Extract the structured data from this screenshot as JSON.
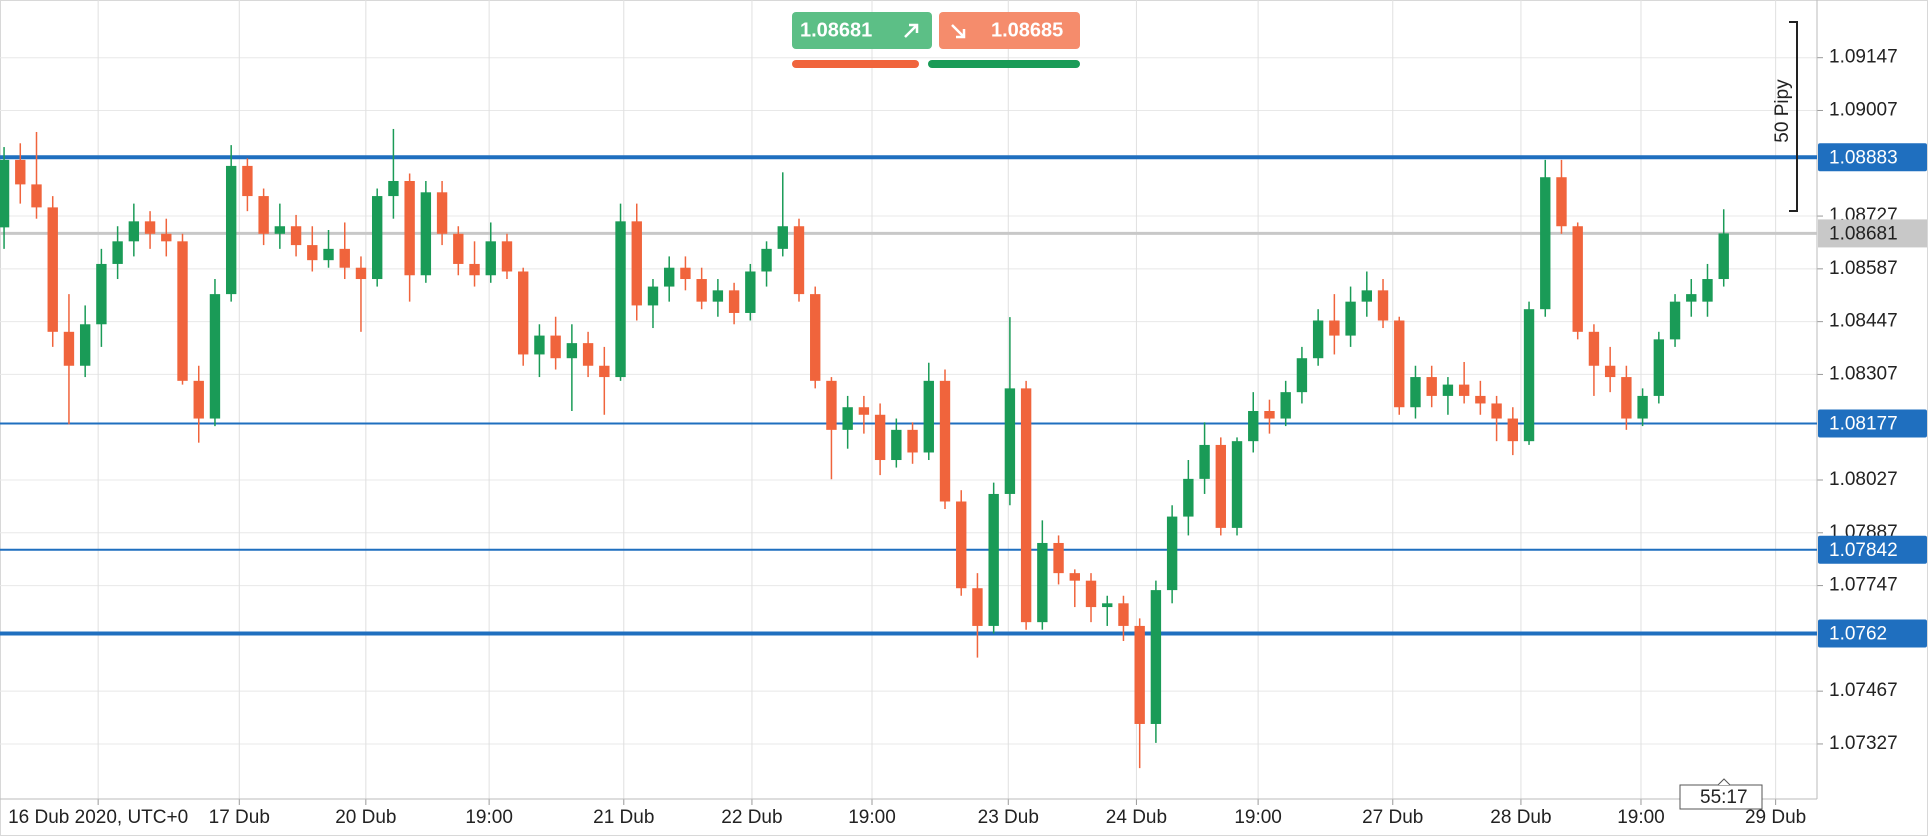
{
  "chart_data": {
    "type": "candlestick",
    "up_color": "#1a9b57",
    "down_color": "#f0643c",
    "level_color": "#1f6fbf",
    "current_color": "#c8c8c8",
    "grid": true,
    "ylim": [
      1.07181,
      1.093
    ],
    "yticks": [
      1.09147,
      1.09007,
      1.08727,
      1.08587,
      1.08447,
      1.08307,
      1.08027,
      1.07887,
      1.07747,
      1.07467,
      1.07327
    ],
    "xlim": [
      -0.25,
      111.75
    ],
    "xticks": [
      {
        "value": 5.8,
        "label": "16 Dub 2020, UTC+0"
      },
      {
        "value": 14.5,
        "label": "17 Dub"
      },
      {
        "value": 22.3,
        "label": "20 Dub"
      },
      {
        "value": 29.9,
        "label": "19:00"
      },
      {
        "value": 38.2,
        "label": "21 Dub"
      },
      {
        "value": 46.1,
        "label": "22 Dub"
      },
      {
        "value": 53.5,
        "label": "19:00"
      },
      {
        "value": 61.9,
        "label": "23 Dub"
      },
      {
        "value": 69.8,
        "label": "24 Dub"
      },
      {
        "value": 77.3,
        "label": "19:00"
      },
      {
        "value": 85.6,
        "label": "27 Dub"
      },
      {
        "value": 93.5,
        "label": "28 Dub"
      },
      {
        "value": 100.9,
        "label": "19:00"
      },
      {
        "value": 109.2,
        "label": "29 Dub"
      }
    ],
    "levels": [
      1.08883,
      1.08177,
      1.07842,
      1.0762
    ],
    "level_styles": [
      "bold",
      "thin",
      "thin",
      "bold"
    ],
    "current_price": 1.08681,
    "sell_price": 1.08681,
    "buy_price": 1.08685,
    "measure_label": "50 Pipy",
    "timer": "55:17",
    "open": [
      1.08697,
      1.08876,
      1.08811,
      1.0875,
      1.0842,
      1.0833,
      1.0844,
      1.086,
      1.0866,
      1.08713,
      1.0868,
      1.0866,
      1.0829,
      1.0819,
      1.0852,
      1.0886,
      1.0878,
      1.0868,
      1.087,
      1.0865,
      1.0861,
      1.0864,
      1.0859,
      1.0856,
      1.0878,
      1.0882,
      1.0857,
      1.0879,
      1.0868,
      1.086,
      1.0857,
      1.0866,
      1.0858,
      1.0836,
      1.0841,
      1.0835,
      1.0839,
      1.0833,
      1.083,
      1.08713,
      1.0849,
      1.0854,
      1.0859,
      1.0856,
      1.085,
      1.0853,
      1.0847,
      1.0858,
      1.0864,
      1.087,
      1.0852,
      1.0829,
      1.0816,
      1.0822,
      1.082,
      1.0808,
      1.0816,
      1.081,
      1.0829,
      1.0797,
      1.0774,
      1.0764,
      1.0799,
      1.0827,
      1.0765,
      1.0786,
      1.0778,
      1.0776,
      1.0769,
      1.077,
      1.0764,
      1.0738,
      1.07735,
      1.0793,
      1.0803,
      1.0812,
      1.079,
      1.0813,
      1.0821,
      1.0819,
      1.0826,
      1.0835,
      1.0845,
      1.0841,
      1.085,
      1.0853,
      1.0845,
      1.0822,
      1.083,
      1.0825,
      1.0828,
      1.0825,
      1.0823,
      1.0819,
      1.0813,
      1.0848,
      1.0883,
      1.087,
      1.0842,
      1.0833,
      1.083,
      1.0819,
      1.0825,
      1.084,
      1.085,
      1.085,
      1.0856
    ],
    "high": [
      1.0891,
      1.0892,
      1.0895,
      1.0878,
      1.0852,
      1.0849,
      1.0864,
      1.087,
      1.0876,
      1.0874,
      1.0872,
      1.0868,
      1.0833,
      1.0856,
      1.08915,
      1.0888,
      1.088,
      1.0876,
      1.0873,
      1.087,
      1.0869,
      1.0871,
      1.0862,
      1.088,
      1.08958,
      1.0884,
      1.0882,
      1.0882,
      1.087,
      1.0866,
      1.0871,
      1.0868,
      1.0859,
      1.0844,
      1.0846,
      1.0844,
      1.0842,
      1.0838,
      1.0876,
      1.0876,
      1.0856,
      1.0862,
      1.0862,
      1.0859,
      1.0856,
      1.0855,
      1.086,
      1.0866,
      1.08843,
      1.0872,
      1.0854,
      1.083,
      1.0825,
      1.0825,
      1.0823,
      1.0819,
      1.0818,
      1.08338,
      1.0832,
      1.08,
      1.0778,
      1.0802,
      1.08459,
      1.0829,
      1.0792,
      1.0788,
      1.0779,
      1.0778,
      1.0772,
      1.0772,
      1.0766,
      1.0776,
      1.0796,
      1.0808,
      1.0818,
      1.0814,
      1.0814,
      1.0826,
      1.0824,
      1.0829,
      1.0838,
      1.0848,
      1.0852,
      1.0854,
      1.0858,
      1.0856,
      1.0846,
      1.0833,
      1.0833,
      1.083,
      1.0834,
      1.0829,
      1.0825,
      1.0822,
      1.085,
      1.08876,
      1.08876,
      1.0871,
      1.0844,
      1.0838,
      1.0833,
      1.0827,
      1.0842,
      1.0852,
      1.0856,
      1.086,
      1.08745
    ],
    "low": [
      1.0864,
      1.0876,
      1.0872,
      1.0838,
      1.08175,
      1.083,
      1.0838,
      1.0856,
      1.0862,
      1.0864,
      1.0862,
      1.0828,
      1.08126,
      1.0817,
      1.085,
      1.0874,
      1.0865,
      1.0864,
      1.0862,
      1.0858,
      1.0859,
      1.0856,
      1.0842,
      1.0854,
      1.0872,
      1.085,
      1.0855,
      1.0865,
      1.0857,
      1.0854,
      1.0855,
      1.0856,
      1.0833,
      1.083,
      1.0832,
      1.0821,
      1.083,
      1.082,
      1.0829,
      1.0845,
      1.0843,
      1.085,
      1.0853,
      1.0848,
      1.0846,
      1.0844,
      1.0845,
      1.0854,
      1.0862,
      1.085,
      1.0827,
      1.08029,
      1.0811,
      1.0815,
      1.0804,
      1.0806,
      1.0807,
      1.0808,
      1.0795,
      1.0772,
      1.07556,
      1.0762,
      1.0796,
      1.0763,
      1.0763,
      1.0775,
      1.0769,
      1.0765,
      1.0764,
      1.076,
      1.07263,
      1.0733,
      1.077,
      1.0788,
      1.0799,
      1.0788,
      1.0788,
      1.081,
      1.0815,
      1.0817,
      1.0823,
      1.0833,
      1.0836,
      1.0838,
      1.0846,
      1.0843,
      1.082,
      1.0819,
      1.0822,
      1.082,
      1.0823,
      1.082,
      1.0813,
      1.08093,
      1.0812,
      1.0846,
      1.0868,
      1.084,
      1.0825,
      1.0826,
      1.0816,
      1.0817,
      1.0823,
      1.0838,
      1.0846,
      1.0846,
      1.0854
    ],
    "close": [
      1.08876,
      1.08811,
      1.0875,
      1.0842,
      1.0833,
      1.0844,
      1.086,
      1.0866,
      1.08713,
      1.0868,
      1.0866,
      1.0829,
      1.0819,
      1.0852,
      1.0886,
      1.0878,
      1.0868,
      1.087,
      1.0865,
      1.0861,
      1.0864,
      1.0859,
      1.0856,
      1.0878,
      1.0882,
      1.0857,
      1.0879,
      1.0868,
      1.086,
      1.0857,
      1.0866,
      1.0858,
      1.0836,
      1.0841,
      1.0835,
      1.0839,
      1.0833,
      1.083,
      1.08713,
      1.0849,
      1.0854,
      1.0859,
      1.0856,
      1.085,
      1.0853,
      1.0847,
      1.0858,
      1.0864,
      1.087,
      1.0852,
      1.0829,
      1.0816,
      1.0822,
      1.082,
      1.0808,
      1.0816,
      1.081,
      1.0829,
      1.0797,
      1.0774,
      1.0764,
      1.0799,
      1.0827,
      1.0765,
      1.0786,
      1.0778,
      1.0776,
      1.0769,
      1.077,
      1.0764,
      1.0738,
      1.07735,
      1.0793,
      1.0803,
      1.0812,
      1.079,
      1.0813,
      1.0821,
      1.0819,
      1.0826,
      1.0835,
      1.0845,
      1.0841,
      1.085,
      1.0853,
      1.0845,
      1.0822,
      1.083,
      1.0825,
      1.0828,
      1.0825,
      1.0823,
      1.0819,
      1.0813,
      1.0848,
      1.0883,
      1.087,
      1.0842,
      1.0833,
      1.083,
      1.0819,
      1.0825,
      1.084,
      1.085,
      1.0852,
      1.0856,
      1.08681
    ]
  }
}
